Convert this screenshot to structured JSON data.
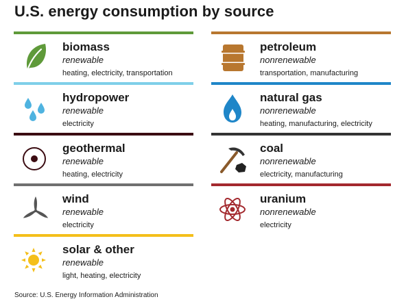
{
  "title": "U.S. energy consumption by source",
  "source_note": "Source: U.S. Energy Information Administration",
  "left_column": [
    {
      "name": "biomass",
      "type": "renewable",
      "uses": "heating, electricity, transportation",
      "color": "#5f9a3a",
      "icon": "leaf-icon"
    },
    {
      "name": "hydropower",
      "type": "renewable",
      "uses": "electricity",
      "color": "#7fcfe9",
      "icon": "water-drops-icon"
    },
    {
      "name": "geothermal",
      "type": "renewable",
      "uses": "heating, electricity",
      "color": "#3b0c12",
      "icon": "earth-core-icon"
    },
    {
      "name": "wind",
      "type": "renewable",
      "uses": "electricity",
      "color": "#707070",
      "icon": "wind-turbine-icon"
    },
    {
      "name": "solar & other",
      "type": "renewable",
      "uses": "light, heating, electricity",
      "color": "#f4bf1a",
      "icon": "sun-icon"
    }
  ],
  "right_column": [
    {
      "name": "petroleum",
      "type": "nonrenewable",
      "uses": "transportation, manufacturing",
      "color": "#b8772f",
      "icon": "oil-barrel-icon"
    },
    {
      "name": "natural gas",
      "type": "nonrenewable",
      "uses": "heating, manufacturing, electricity",
      "color": "#1f86c8",
      "icon": "flame-icon"
    },
    {
      "name": "coal",
      "type": "nonrenewable",
      "uses": "electricity, manufacturing",
      "color": "#333333",
      "icon": "pickaxe-icon"
    },
    {
      "name": "uranium",
      "type": "nonrenewable",
      "uses": "electricity",
      "color": "#a3292e",
      "icon": "atom-icon"
    }
  ]
}
